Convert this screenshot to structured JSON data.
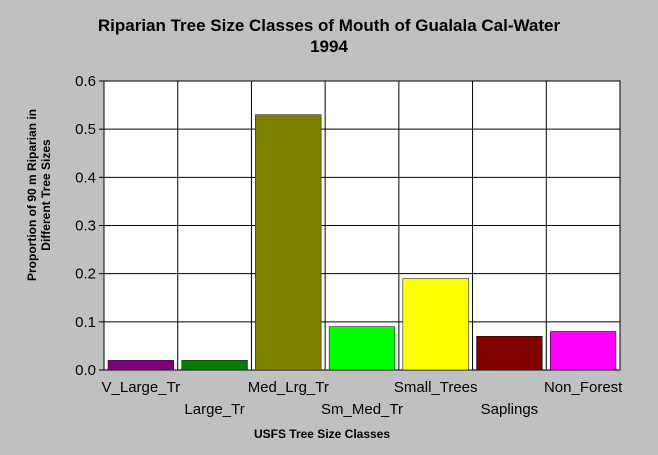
{
  "chart_data": {
    "type": "bar",
    "title": "Riparian Tree Size Classes of Mouth of Gualala Cal-Water",
    "subtitle": "1994",
    "xlabel": "USFS Tree Size Classes",
    "ylabel_line1": "Proportion of 90 m Riparian in",
    "ylabel_line2": "Different Tree Sizes",
    "categories": [
      "V_Large_Tr",
      "Large_Tr",
      "Med_Lrg_Tr",
      "Sm_Med_Tr",
      "Small_Trees",
      "Saplings",
      "Non_Forest"
    ],
    "values": [
      0.02,
      0.02,
      0.53,
      0.09,
      0.19,
      0.07,
      0.08
    ],
    "colors": [
      "#800080",
      "#008000",
      "#808000",
      "#00ff00",
      "#ffff00",
      "#800000",
      "#ff00ff"
    ],
    "ylim": [
      0,
      0.6
    ],
    "yticks": [
      0.0,
      0.1,
      0.2,
      0.3,
      0.4,
      0.5,
      0.6
    ],
    "ytick_labels": [
      "0.0",
      "0.1",
      "0.2",
      "0.3",
      "0.4",
      "0.5",
      "0.6"
    ],
    "grid": true,
    "plot_background": "#ffffff",
    "page_background": "#c0c0c0"
  }
}
